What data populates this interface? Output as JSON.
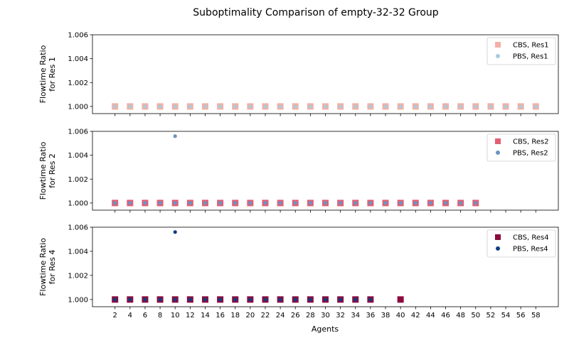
{
  "chart_data": {
    "type": "scatter",
    "title": "Suboptimality Comparison of empty-32-32 Group",
    "xlabel": "Agents",
    "x_ticks": [
      2,
      4,
      6,
      8,
      10,
      12,
      14,
      16,
      18,
      20,
      22,
      24,
      26,
      28,
      30,
      32,
      34,
      36,
      38,
      40,
      42,
      44,
      46,
      48,
      50,
      52,
      54,
      56,
      58
    ],
    "xlim": [
      -1,
      61
    ],
    "ylim": [
      0.9994,
      1.006
    ],
    "y_ticks": [
      "1.000",
      "1.002",
      "1.004",
      "1.006"
    ],
    "legend_position": "top-right",
    "panels": [
      {
        "ylabel": [
          "Flowtime Ratio",
          "for Res 1"
        ],
        "series": [
          {
            "name": "CBS, Res1",
            "marker": "square",
            "color": "#f4b0a4",
            "x": [
              2,
              4,
              6,
              8,
              10,
              12,
              14,
              16,
              18,
              20,
              22,
              24,
              26,
              28,
              30,
              32,
              34,
              36,
              38,
              40,
              42,
              44,
              46,
              48,
              50,
              52,
              54,
              56,
              58
            ],
            "y": [
              1.0,
              1.0,
              1.0,
              1.0,
              1.0,
              1.0,
              1.0,
              1.0,
              1.0,
              1.0,
              1.0,
              1.0,
              1.0,
              1.0,
              1.0,
              1.0,
              1.0,
              1.0,
              1.0,
              1.0,
              1.0,
              1.0,
              1.0,
              1.0,
              1.0,
              1.0,
              1.0,
              1.0,
              1.0
            ]
          },
          {
            "name": "PBS, Res1",
            "marker": "circle",
            "color": "#a9cbdd",
            "x": [
              2,
              4,
              6,
              8,
              10,
              12,
              14,
              16,
              18,
              20,
              22,
              24,
              26,
              28,
              30,
              32,
              34,
              36,
              38,
              40,
              42,
              44,
              46,
              48,
              50,
              52,
              54,
              56,
              58
            ],
            "y": [
              1.0,
              1.0,
              1.0,
              1.0,
              1.0,
              1.0,
              1.0,
              1.0,
              1.0,
              1.0,
              1.0,
              1.0,
              1.0,
              1.0,
              1.0,
              1.0,
              1.0,
              1.0,
              1.0,
              1.0,
              1.0,
              1.0,
              1.0,
              1.0,
              1.0,
              1.0,
              1.0,
              1.0,
              1.0
            ]
          }
        ]
      },
      {
        "ylabel": [
          "Flowtime Ratio",
          "for Res 2"
        ],
        "series": [
          {
            "name": "CBS, Res2",
            "marker": "square",
            "color": "#e35f74",
            "x": [
              2,
              4,
              6,
              8,
              10,
              12,
              14,
              16,
              18,
              20,
              22,
              24,
              26,
              28,
              30,
              32,
              34,
              36,
              38,
              40,
              42,
              44,
              46,
              48,
              50
            ],
            "y": [
              1.0,
              1.0,
              1.0,
              1.0,
              1.0,
              1.0,
              1.0,
              1.0,
              1.0,
              1.0,
              1.0,
              1.0,
              1.0,
              1.0,
              1.0,
              1.0,
              1.0,
              1.0,
              1.0,
              1.0,
              1.0,
              1.0,
              1.0,
              1.0,
              1.0
            ]
          },
          {
            "name": "PBS, Res2",
            "marker": "circle",
            "color": "#6a93c4",
            "x": [
              2,
              4,
              6,
              8,
              10,
              10,
              12,
              14,
              16,
              18,
              20,
              22,
              24,
              26,
              28,
              30,
              32,
              34,
              36,
              38,
              40,
              42,
              44,
              46,
              48,
              50
            ],
            "y": [
              1.0,
              1.0,
              1.0,
              1.0,
              1.0,
              1.0056,
              1.0,
              1.0,
              1.0,
              1.0,
              1.0,
              1.0,
              1.0,
              1.0,
              1.0,
              1.0,
              1.0,
              1.0,
              1.0,
              1.0,
              1.0,
              1.0,
              1.0,
              1.0,
              1.0,
              1.0
            ]
          }
        ]
      },
      {
        "ylabel": [
          "Flowtime Ratio",
          "for Res 4"
        ],
        "series": [
          {
            "name": "CBS, Res4",
            "marker": "square",
            "color": "#8c0a3e",
            "x": [
              2,
              4,
              6,
              8,
              10,
              12,
              14,
              16,
              18,
              20,
              22,
              24,
              26,
              28,
              30,
              32,
              34,
              36,
              40
            ],
            "y": [
              1.0,
              1.0,
              1.0,
              1.0,
              1.0,
              1.0,
              1.0,
              1.0,
              1.0,
              1.0,
              1.0,
              1.0,
              1.0,
              1.0,
              1.0,
              1.0,
              1.0,
              1.0,
              1.0
            ]
          },
          {
            "name": "PBS, Res4",
            "marker": "circle",
            "color": "#0d3f80",
            "x": [
              2,
              4,
              6,
              8,
              10,
              10,
              12,
              14,
              16,
              18,
              20,
              22,
              24,
              26,
              28,
              30,
              32,
              34,
              36
            ],
            "y": [
              1.0,
              1.0,
              1.0,
              1.0,
              1.0,
              1.0056,
              1.0,
              1.0,
              1.0,
              1.0,
              1.0,
              1.0,
              1.0,
              1.0,
              1.0,
              1.0,
              1.0,
              1.0,
              1.0
            ]
          }
        ]
      }
    ]
  }
}
